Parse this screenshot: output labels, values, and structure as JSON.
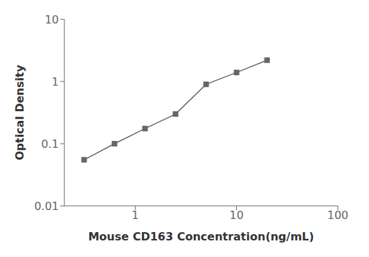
{
  "chart_data": {
    "type": "line",
    "x": [
      0.313,
      0.625,
      1.25,
      2.5,
      5.0,
      10.0,
      20.0
    ],
    "values": [
      0.055,
      0.1,
      0.175,
      0.3,
      0.9,
      1.4,
      2.2
    ],
    "xlabel": "Mouse CD163 Concentration(ng/mL)",
    "ylabel": "Optical Density",
    "xlim": [
      0.2,
      100
    ],
    "ylim": [
      0.01,
      10
    ],
    "xticks": [
      1,
      10,
      100
    ],
    "yticks": [
      0.01,
      0.1,
      1,
      10
    ],
    "log": true,
    "color": "#666666",
    "marker": "square"
  }
}
